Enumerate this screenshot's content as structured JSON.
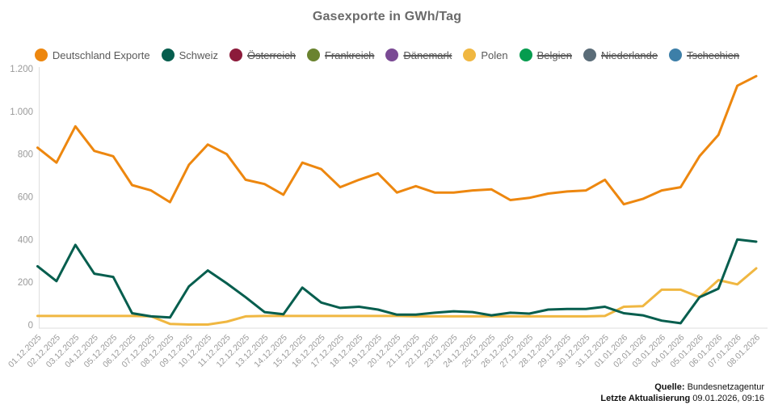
{
  "title": "Gasexporte in GWh/Tag",
  "legend": [
    {
      "label": "Deutschland Exporte",
      "color": "#ED870F",
      "active": true
    },
    {
      "label": "Schweiz",
      "color": "#065E4E",
      "active": true
    },
    {
      "label": "Österreich",
      "color": "#8C1B3B",
      "active": false
    },
    {
      "label": "Frankreich",
      "color": "#6A832F",
      "active": false
    },
    {
      "label": "Dänemark",
      "color": "#7A4A94",
      "active": false
    },
    {
      "label": "Polen",
      "color": "#F0B741",
      "active": true
    },
    {
      "label": "Belgien",
      "color": "#069C4F",
      "active": false
    },
    {
      "label": "Niederlande",
      "color": "#5A6C78",
      "active": false
    },
    {
      "label": "Tschechien",
      "color": "#3D7FA8",
      "active": false
    }
  ],
  "chart_data": {
    "type": "line",
    "title": "Gasexporte in GWh/Tag",
    "ylabel": "GWh/Tag",
    "ylim": [
      0,
      1200
    ],
    "ytick_values": [
      0,
      200,
      400,
      600,
      800,
      1000,
      1200
    ],
    "ytick_labels": [
      "0",
      "200",
      "400",
      "600",
      "800",
      "1.000",
      "1.200"
    ],
    "grid": false,
    "legend_position": "top",
    "x": [
      "01.12.2025",
      "02.12.2025",
      "03.12.2025",
      "04.12.2025",
      "05.12.2025",
      "06.12.2025",
      "07.12.2025",
      "08.12.2025",
      "09.12.2025",
      "10.12.2025",
      "11.12.2025",
      "12.12.2025",
      "13.12.2025",
      "14.12.2025",
      "15.12.2025",
      "16.12.2025",
      "17.12.2025",
      "18.12.2025",
      "19.12.2025",
      "20.12.2025",
      "21.12.2025",
      "22.12.2025",
      "23.12.2025",
      "24.12.2025",
      "25.12.2025",
      "26.12.2025",
      "27.12.2025",
      "28.12.2025",
      "29.12.2025",
      "30.12.2025",
      "31.12.2025",
      "01.01.2026",
      "02.01.2026",
      "03.01.2026",
      "04.01.2026",
      "05.01.2026",
      "06.01.2026",
      "07.01.2026",
      "08.01.2026"
    ],
    "series": [
      {
        "name": "Deutschland Exporte",
        "color": "#ED870F",
        "values": [
          830,
          760,
          930,
          815,
          790,
          655,
          630,
          575,
          750,
          845,
          800,
          680,
          660,
          610,
          760,
          730,
          645,
          680,
          710,
          620,
          650,
          620,
          620,
          630,
          635,
          585,
          595,
          615,
          625,
          630,
          680,
          565,
          590,
          630,
          645,
          790,
          890,
          1120,
          1165
        ]
      },
      {
        "name": "Schweiz",
        "color": "#065E4E",
        "values": [
          275,
          205,
          375,
          240,
          225,
          55,
          40,
          35,
          180,
          255,
          195,
          130,
          60,
          50,
          175,
          105,
          80,
          85,
          72,
          48,
          48,
          57,
          64,
          60,
          45,
          57,
          53,
          72,
          75,
          75,
          85,
          55,
          45,
          20,
          8,
          130,
          170,
          400,
          390
        ]
      },
      {
        "name": "Polen",
        "color": "#F0B741",
        "values": [
          42,
          42,
          42,
          42,
          42,
          42,
          40,
          5,
          2,
          2,
          15,
          40,
          42,
          42,
          42,
          42,
          42,
          42,
          42,
          42,
          40,
          40,
          40,
          40,
          40,
          40,
          40,
          40,
          40,
          40,
          42,
          85,
          88,
          165,
          165,
          130,
          210,
          190,
          265
        ]
      }
    ],
    "hidden_series": [
      "Österreich",
      "Frankreich",
      "Dänemark",
      "Belgien",
      "Niederlande",
      "Tschechien"
    ]
  },
  "footer": {
    "source_label": "Quelle:",
    "source_value": " Bundesnetzagentur",
    "updated_label": "Letzte Aktualisierung",
    "updated_value": " 09.01.2026, 09:16"
  }
}
